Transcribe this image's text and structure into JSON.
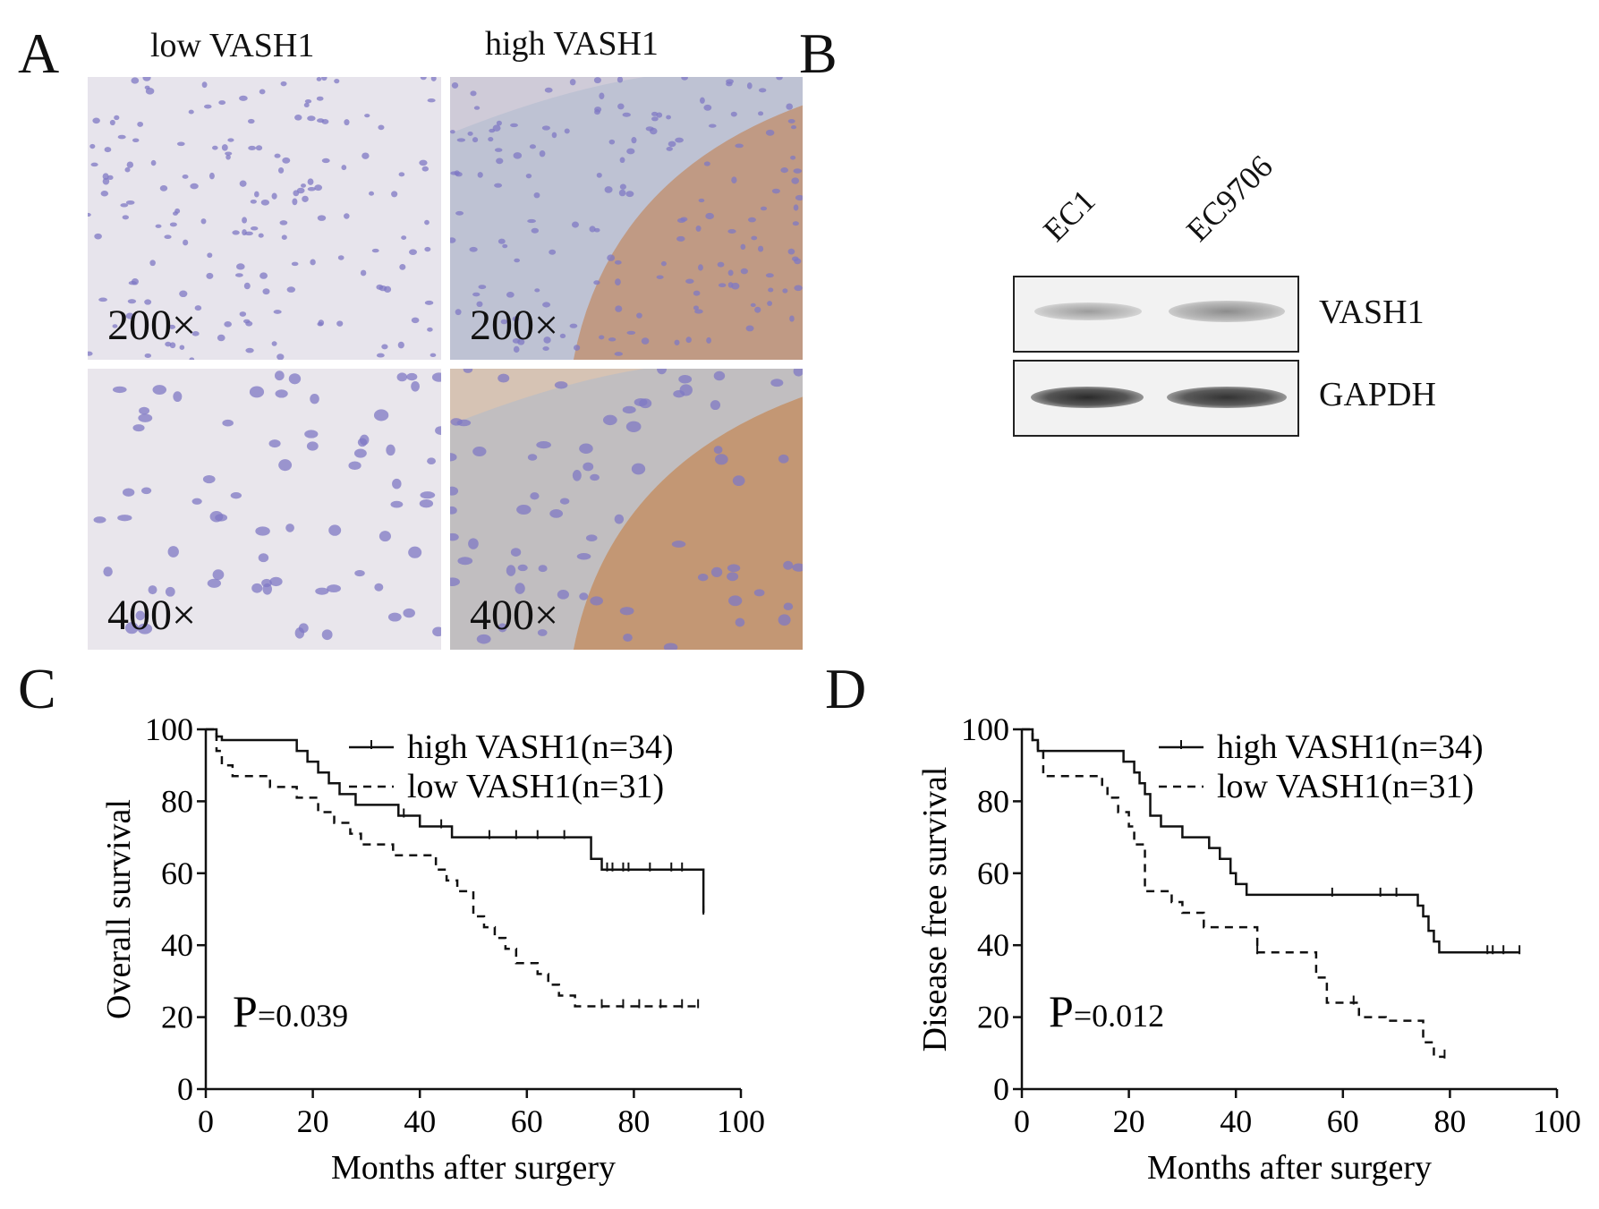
{
  "panels": {
    "A": "A",
    "B": "B",
    "C": "C",
    "D": "D"
  },
  "panel_a": {
    "col_labels": [
      "low VASH1",
      "high VASH1"
    ],
    "magnifications": [
      "200×",
      "200×",
      "400×",
      "400×"
    ],
    "colors": {
      "hematoxylin": "#7f78c4",
      "dab_brown": "#b5733f",
      "background": "#e9e6ec"
    }
  },
  "panel_b": {
    "lanes": [
      "EC1",
      "EC9706"
    ],
    "rows": [
      "VASH1",
      "GAPDH"
    ]
  },
  "chart_data": [
    {
      "type": "line",
      "subtype": "kaplan-meier",
      "panel": "C",
      "xlabel": "Months after surgery",
      "ylabel": "Overall survival",
      "xlim": [
        0,
        100
      ],
      "ylim": [
        0,
        100
      ],
      "xticks": [
        0,
        20,
        40,
        60,
        80,
        100
      ],
      "yticks": [
        0,
        20,
        40,
        60,
        80,
        100
      ],
      "pvalue_prefix": "P",
      "pvalue": "=0.039",
      "legend_position": "top-right",
      "series": [
        {
          "name": "high VASH1(n=34)",
          "style": "solid",
          "x": [
            0,
            1,
            2,
            3,
            15,
            17,
            19,
            21,
            23,
            25,
            28,
            36,
            40,
            46,
            72,
            74,
            93
          ],
          "y": [
            100,
            100,
            98,
            97,
            97,
            94,
            91,
            88,
            85,
            82,
            79,
            76,
            73,
            70,
            64,
            61,
            49
          ],
          "censored_x": [
            37,
            44,
            53,
            58,
            62,
            67,
            75,
            76,
            78,
            79,
            83,
            87,
            89,
            93
          ]
        },
        {
          "name": "low VASH1(n=31)",
          "style": "dashed",
          "x": [
            0,
            1,
            2,
            3,
            5,
            12,
            17,
            21,
            24,
            27,
            29,
            35,
            43,
            45,
            47,
            50,
            52,
            54,
            56,
            58,
            62,
            64,
            66,
            69,
            92
          ],
          "y": [
            100,
            100,
            94,
            90,
            87,
            84,
            81,
            77,
            74,
            71,
            68,
            65,
            61,
            58,
            55,
            48,
            45,
            42,
            39,
            35,
            32,
            29,
            26,
            23,
            23
          ],
          "censored_x": [
            74,
            78,
            81,
            85,
            89,
            92
          ]
        }
      ]
    },
    {
      "type": "line",
      "subtype": "kaplan-meier",
      "panel": "D",
      "xlabel": "Months after surgery",
      "ylabel": "Disease free survival",
      "xlim": [
        0,
        100
      ],
      "ylim": [
        0,
        100
      ],
      "xticks": [
        0,
        20,
        40,
        60,
        80,
        100
      ],
      "yticks": [
        0,
        20,
        40,
        60,
        80,
        100
      ],
      "pvalue_prefix": "P",
      "pvalue": "=0.012",
      "legend_position": "top-right",
      "series": [
        {
          "name": "high VASH1(n=34)",
          "style": "solid",
          "x": [
            0,
            1,
            2,
            3,
            5,
            16,
            19,
            21,
            22,
            23,
            24,
            26,
            30,
            35,
            37,
            39,
            40,
            42,
            72,
            74,
            75,
            76,
            77,
            78,
            93
          ],
          "y": [
            100,
            100,
            97,
            94,
            94,
            94,
            91,
            88,
            85,
            82,
            76,
            73,
            70,
            67,
            64,
            60,
            57,
            54,
            54,
            51,
            48,
            44,
            41,
            38,
            38
          ],
          "censored_x": [
            58,
            67,
            70,
            87,
            88,
            90,
            93
          ]
        },
        {
          "name": "low VASH1(n=31)",
          "style": "dashed",
          "x": [
            0,
            1,
            2,
            3,
            4,
            13,
            15,
            16,
            18,
            20,
            21,
            23,
            28,
            30,
            34,
            44,
            55,
            57,
            61,
            63,
            65,
            68,
            75,
            77,
            79
          ],
          "y": [
            100,
            100,
            97,
            94,
            87,
            87,
            84,
            81,
            77,
            73,
            68,
            55,
            52,
            49,
            45,
            38,
            31,
            24,
            24,
            20,
            20,
            19,
            13,
            9,
            9
          ],
          "censored_x": [
            44,
            62,
            79
          ]
        }
      ]
    }
  ]
}
